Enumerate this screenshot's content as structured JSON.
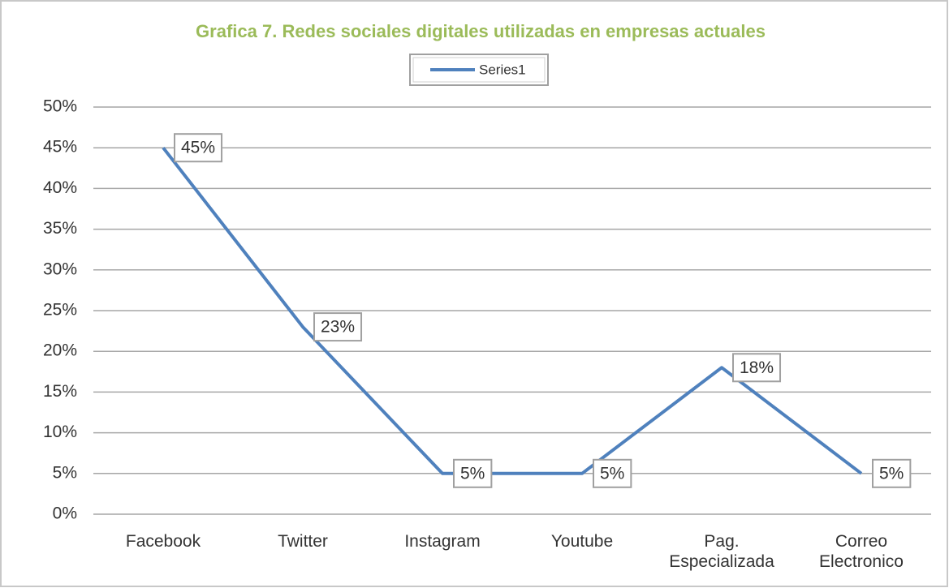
{
  "chart_data": {
    "type": "line",
    "title": "Grafica 7. Redes sociales digitales utilizadas en empresas actuales",
    "categories": [
      "Facebook",
      "Twitter",
      "Instagram",
      "Youtube",
      "Pag. Especializada",
      "Correo Electronico"
    ],
    "series": [
      {
        "name": "Series1",
        "color": "#4f81bd",
        "values": [
          45,
          23,
          5,
          5,
          18,
          5
        ],
        "value_labels": [
          "45%",
          "23%",
          "5%",
          "5%",
          "18%",
          "5%"
        ]
      }
    ],
    "ylim": [
      0,
      50
    ],
    "yticks": [
      {
        "value": 0,
        "label": "0%"
      },
      {
        "value": 5,
        "label": "5%"
      },
      {
        "value": 10,
        "label": "10%"
      },
      {
        "value": 15,
        "label": "15%"
      },
      {
        "value": 20,
        "label": "20%"
      },
      {
        "value": 25,
        "label": "25%"
      },
      {
        "value": 30,
        "label": "30%"
      },
      {
        "value": 35,
        "label": "35%"
      },
      {
        "value": 40,
        "label": "40%"
      },
      {
        "value": 45,
        "label": "45%"
      },
      {
        "value": 50,
        "label": "50%"
      }
    ],
    "grid": true,
    "legend": "top",
    "title_color": "#9bbb59"
  }
}
